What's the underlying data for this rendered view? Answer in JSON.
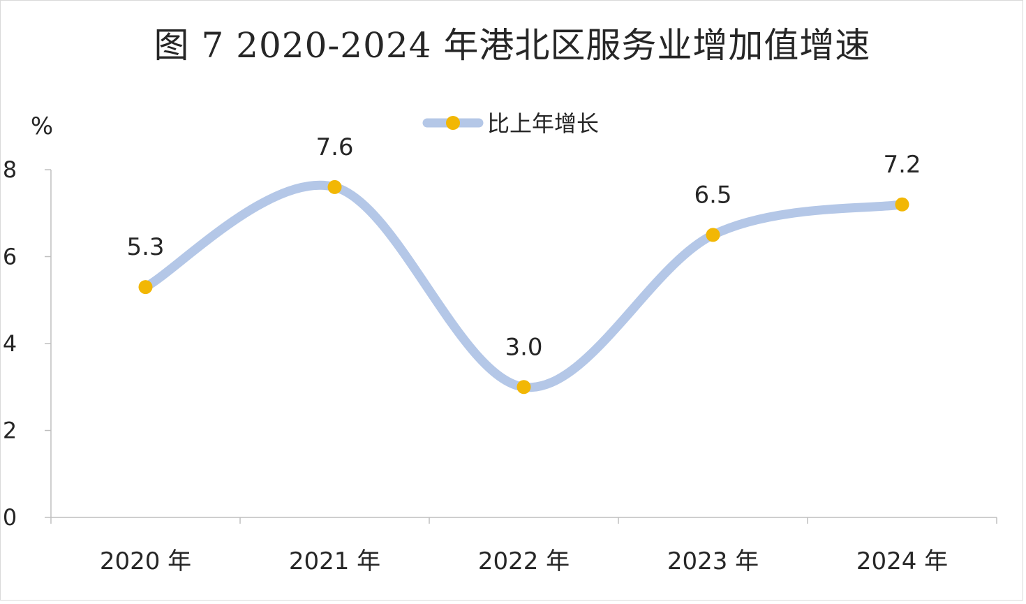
{
  "chart_data": {
    "type": "line",
    "title": "图 7 2020-2024 年港北区服务业增加值增速",
    "ylabel": "%",
    "xlabel": "",
    "categories": [
      "2020 年",
      "2021 年",
      "2022 年",
      "2023 年",
      "2024 年"
    ],
    "series": [
      {
        "name": "比上年增长",
        "values": [
          5.3,
          7.6,
          3.0,
          6.5,
          7.2
        ],
        "labels": [
          "5.3",
          "7.6",
          "3.0",
          "6.5",
          "7.2"
        ],
        "line_color": "#b4c7e7",
        "marker_color": "#f2b705"
      }
    ],
    "ylim": [
      0,
      8
    ],
    "yticks": [
      "0",
      "2",
      "4",
      "6",
      "8"
    ],
    "smooth": true,
    "grid": false,
    "legend_position": "top-center"
  }
}
